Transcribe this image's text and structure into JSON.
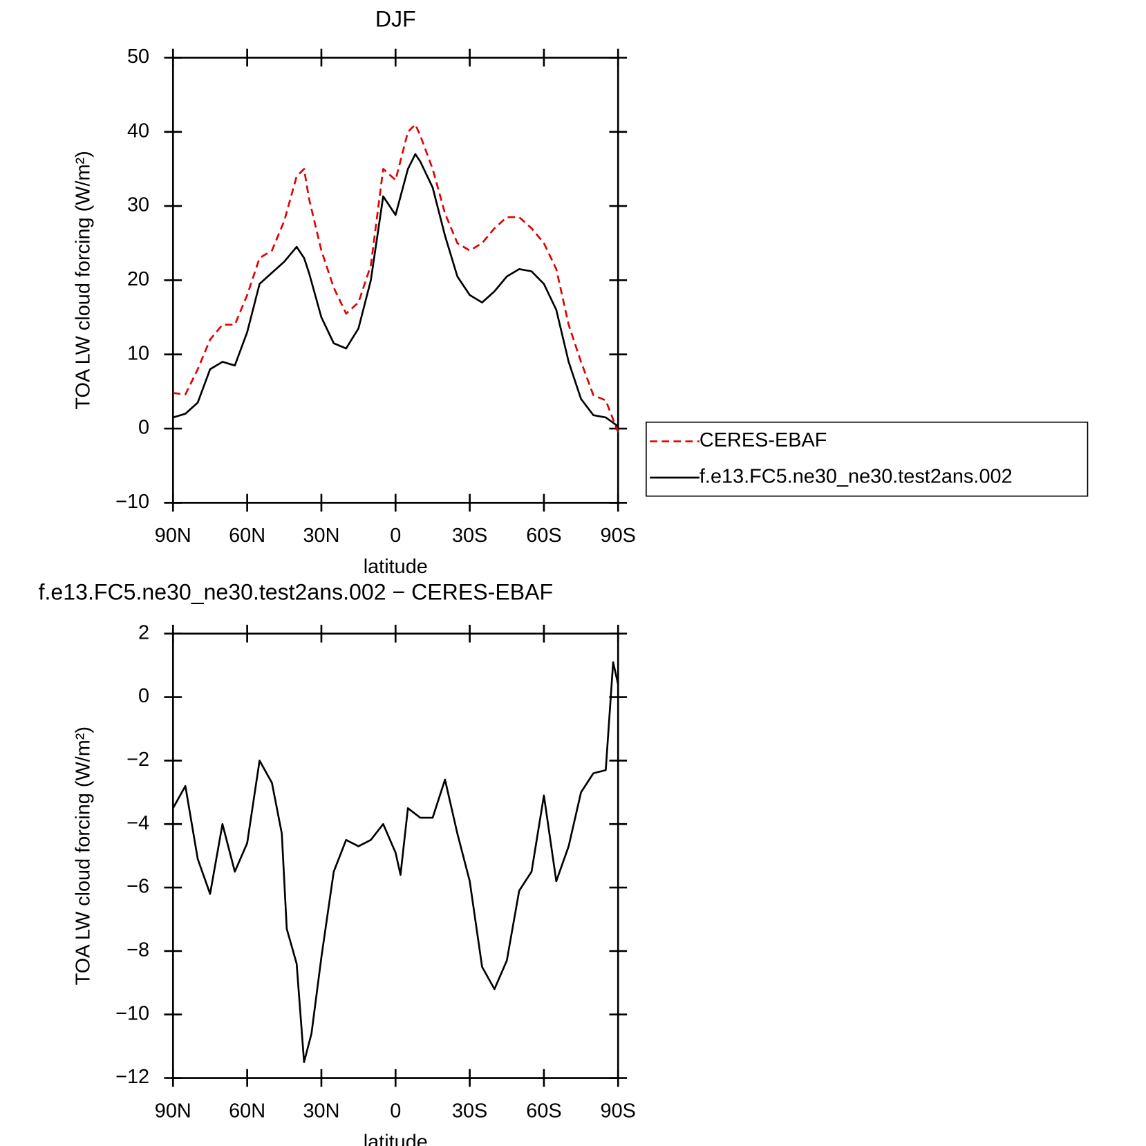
{
  "chart_data": [
    {
      "type": "line",
      "title": "DJF",
      "xlabel": "latitude",
      "ylabel": "TOA LW cloud forcing (W/m²)",
      "x": [
        90,
        85,
        80,
        75,
        70,
        65,
        60,
        55,
        50,
        45,
        40,
        37,
        35,
        30,
        25,
        20,
        15,
        10,
        5,
        0,
        -5,
        -8,
        -10,
        -15,
        -20,
        -25,
        -30,
        -35,
        -40,
        -45,
        -50,
        -55,
        -60,
        -65,
        -70,
        -75,
        -80,
        -85,
        -90
      ],
      "series": [
        {
          "name": "CERES-EBAF",
          "color": "#e00000",
          "dash": true,
          "values": [
            4.8,
            4.6,
            8,
            12,
            14,
            14,
            18,
            23,
            24,
            28,
            34,
            35,
            31,
            24,
            19,
            15.5,
            17,
            22,
            35,
            33.5,
            40,
            41,
            39.5,
            35,
            29,
            25,
            24,
            25,
            27,
            28.5,
            28.5,
            27,
            25,
            21.5,
            14,
            9,
            4.5,
            3.8,
            -0.5
          ]
        },
        {
          "name": "f.e13.FC5.ne30_ne30.test2ans.002",
          "color": "#000000",
          "dash": false,
          "values": [
            1.5,
            2,
            3.5,
            8,
            9,
            8.5,
            13,
            19.5,
            21,
            22.5,
            24.5,
            23,
            21,
            15,
            11.5,
            10.8,
            13.5,
            20,
            31.3,
            28.8,
            35,
            37,
            36,
            32.5,
            26,
            20.5,
            18,
            17,
            18.5,
            20.5,
            21.5,
            21.2,
            19.5,
            16,
            9,
            4,
            1.8,
            1.5,
            0.3
          ]
        }
      ],
      "xlim": [
        90,
        -90
      ],
      "xticks": [
        {
          "value": 90,
          "label": "90N"
        },
        {
          "value": 60,
          "label": "60N"
        },
        {
          "value": 30,
          "label": "30N"
        },
        0,
        {
          "value": -30,
          "label": "30S"
        },
        {
          "value": -60,
          "label": "60S"
        },
        {
          "value": -90,
          "label": "90S"
        }
      ],
      "ylim": [
        -10,
        50
      ],
      "yticks": [
        {
          "value": -10,
          "label": "−10"
        },
        0,
        10,
        20,
        30,
        40,
        50
      ],
      "legend": "right"
    },
    {
      "type": "line",
      "title": "f.e13.FC5.ne30_ne30.test2ans.002 − CERES-EBAF",
      "xlabel": "latitude",
      "ylabel": "TOA LW cloud forcing (W/m²)",
      "x": [
        90,
        85,
        80,
        75,
        70,
        65,
        60,
        55,
        50,
        46,
        44,
        40,
        37,
        34,
        30,
        25,
        20,
        15,
        10,
        5,
        0,
        -2,
        -5,
        -10,
        -15,
        -20,
        -25,
        -30,
        -35,
        -40,
        -45,
        -50,
        -55,
        -60,
        -65,
        -70,
        -75,
        -80,
        -85,
        -88,
        -90
      ],
      "series": [
        {
          "color": "#000000",
          "dash": false,
          "values": [
            -3.5,
            -2.8,
            -5.1,
            -6.2,
            -4,
            -5.5,
            -4.6,
            -2,
            -2.7,
            -4.3,
            -7.3,
            -8.4,
            -11.5,
            -10.6,
            -8.2,
            -5.5,
            -4.5,
            -4.7,
            -4.5,
            -4,
            -4.9,
            -5.6,
            -3.5,
            -3.8,
            -3.8,
            -2.6,
            -4.3,
            -5.8,
            -8.5,
            -9.2,
            -8.3,
            -6.1,
            -5.5,
            -3.1,
            -5.8,
            -4.7,
            -3,
            -2.4,
            -2.3,
            1.1,
            0.4
          ]
        }
      ],
      "xlim": [
        90,
        -90
      ],
      "xticks": [
        {
          "value": 90,
          "label": "90N"
        },
        {
          "value": 60,
          "label": "60N"
        },
        {
          "value": 30,
          "label": "30N"
        },
        0,
        {
          "value": -30,
          "label": "30S"
        },
        {
          "value": -60,
          "label": "60S"
        },
        {
          "value": -90,
          "label": "90S"
        }
      ],
      "ylim": [
        -12,
        2
      ],
      "yticks": [
        {
          "value": -12,
          "label": "−12"
        },
        {
          "value": -10,
          "label": "−10"
        },
        {
          "value": -8,
          "label": "−8"
        },
        {
          "value": -6,
          "label": "−6"
        },
        {
          "value": -4,
          "label": "−4"
        },
        {
          "value": -2,
          "label": "−2"
        },
        0,
        2
      ]
    }
  ]
}
